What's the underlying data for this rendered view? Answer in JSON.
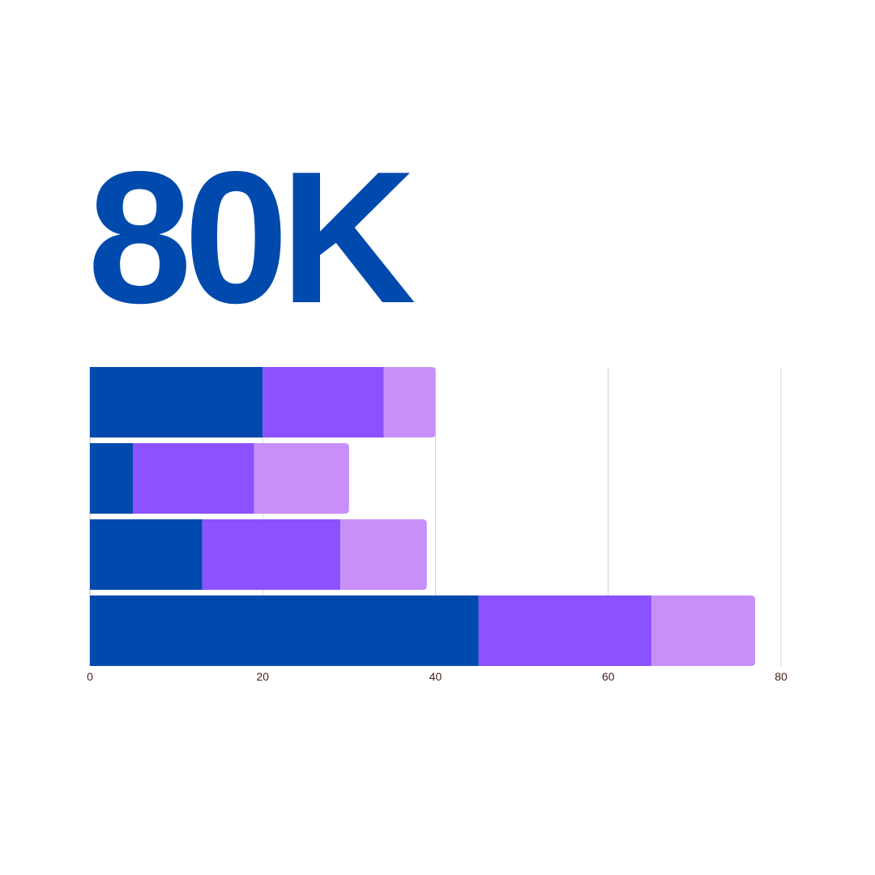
{
  "headline": "80K",
  "colors": {
    "headline": "#004aad",
    "series": [
      "#004aad",
      "#8c52ff",
      "#c88ff9"
    ]
  },
  "chart_data": {
    "type": "bar",
    "orientation": "horizontal",
    "stacked": true,
    "categories": [
      "",
      "",
      "",
      ""
    ],
    "series": [
      {
        "values": [
          20,
          5,
          13,
          45
        ]
      },
      {
        "values": [
          14,
          14,
          16,
          20
        ]
      },
      {
        "values": [
          6,
          11,
          10,
          12
        ]
      }
    ],
    "xlim": [
      0,
      80
    ],
    "xticks": [
      0,
      20,
      40,
      60,
      80
    ],
    "grid": "vertical",
    "legend": "none",
    "title": "",
    "xlabel": "",
    "ylabel": ""
  }
}
